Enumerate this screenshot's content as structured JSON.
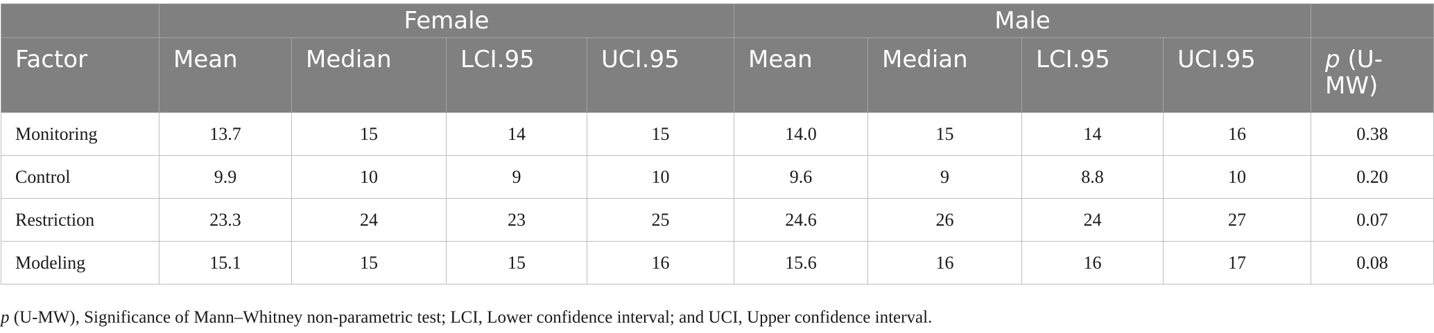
{
  "table": {
    "group_headers": {
      "female": "Female",
      "male": "Male"
    },
    "columns": [
      "Factor",
      "Mean",
      "Median",
      "LCI.95",
      "UCI.95",
      "Mean",
      "Median",
      "LCI.95",
      "UCI.95",
      "p (U-\nMW)"
    ],
    "p_col": {
      "italic": "p",
      "rest": " (U-",
      "line2": "MW)"
    },
    "rows": [
      [
        "Monitoring",
        "13.7",
        "15",
        "14",
        "15",
        "14.0",
        "15",
        "14",
        "16",
        "0.38"
      ],
      [
        "Control",
        "9.9",
        "10",
        "9",
        "10",
        "9.6",
        "9",
        "8.8",
        "10",
        "0.20"
      ],
      [
        "Restriction",
        "23.3",
        "24",
        "23",
        "25",
        "24.6",
        "26",
        "24",
        "27",
        "0.07"
      ],
      [
        "Modeling",
        "15.1",
        "15",
        "15",
        "16",
        "15.6",
        "16",
        "16",
        "17",
        "0.08"
      ]
    ]
  },
  "footnote": {
    "italic": "p",
    "text": " (U-MW), Significance of Mann–Whitney non-parametric test; LCI, Lower confidence interval; and UCI, Upper confidence interval."
  },
  "colors": {
    "header_bg": "#808080",
    "header_text": "#ffffff",
    "border": "#bdbdbd"
  }
}
